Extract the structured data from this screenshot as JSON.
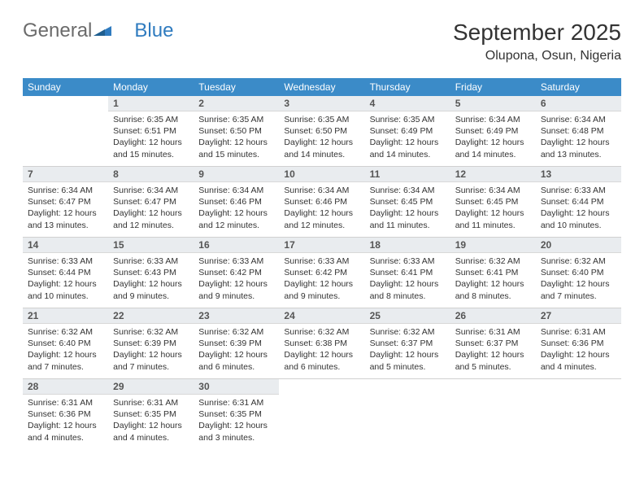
{
  "logo": {
    "general": "General",
    "blue": "Blue"
  },
  "title": "September 2025",
  "location": "Olupona, Osun, Nigeria",
  "colors": {
    "header_bg": "#3b8bc8",
    "header_text": "#ffffff",
    "daynum_bg": "#e9ecef",
    "text": "#333333",
    "logo_gray": "#6b6b6b",
    "logo_blue": "#2f7bbf",
    "border": "#d0d0d0"
  },
  "weekdays": [
    "Sunday",
    "Monday",
    "Tuesday",
    "Wednesday",
    "Thursday",
    "Friday",
    "Saturday"
  ],
  "weeks": [
    [
      {
        "day": "",
        "sunrise": "",
        "sunset": "",
        "daylight": ""
      },
      {
        "day": "1",
        "sunrise": "Sunrise: 6:35 AM",
        "sunset": "Sunset: 6:51 PM",
        "daylight": "Daylight: 12 hours and 15 minutes."
      },
      {
        "day": "2",
        "sunrise": "Sunrise: 6:35 AM",
        "sunset": "Sunset: 6:50 PM",
        "daylight": "Daylight: 12 hours and 15 minutes."
      },
      {
        "day": "3",
        "sunrise": "Sunrise: 6:35 AM",
        "sunset": "Sunset: 6:50 PM",
        "daylight": "Daylight: 12 hours and 14 minutes."
      },
      {
        "day": "4",
        "sunrise": "Sunrise: 6:35 AM",
        "sunset": "Sunset: 6:49 PM",
        "daylight": "Daylight: 12 hours and 14 minutes."
      },
      {
        "day": "5",
        "sunrise": "Sunrise: 6:34 AM",
        "sunset": "Sunset: 6:49 PM",
        "daylight": "Daylight: 12 hours and 14 minutes."
      },
      {
        "day": "6",
        "sunrise": "Sunrise: 6:34 AM",
        "sunset": "Sunset: 6:48 PM",
        "daylight": "Daylight: 12 hours and 13 minutes."
      }
    ],
    [
      {
        "day": "7",
        "sunrise": "Sunrise: 6:34 AM",
        "sunset": "Sunset: 6:47 PM",
        "daylight": "Daylight: 12 hours and 13 minutes."
      },
      {
        "day": "8",
        "sunrise": "Sunrise: 6:34 AM",
        "sunset": "Sunset: 6:47 PM",
        "daylight": "Daylight: 12 hours and 12 minutes."
      },
      {
        "day": "9",
        "sunrise": "Sunrise: 6:34 AM",
        "sunset": "Sunset: 6:46 PM",
        "daylight": "Daylight: 12 hours and 12 minutes."
      },
      {
        "day": "10",
        "sunrise": "Sunrise: 6:34 AM",
        "sunset": "Sunset: 6:46 PM",
        "daylight": "Daylight: 12 hours and 12 minutes."
      },
      {
        "day": "11",
        "sunrise": "Sunrise: 6:34 AM",
        "sunset": "Sunset: 6:45 PM",
        "daylight": "Daylight: 12 hours and 11 minutes."
      },
      {
        "day": "12",
        "sunrise": "Sunrise: 6:34 AM",
        "sunset": "Sunset: 6:45 PM",
        "daylight": "Daylight: 12 hours and 11 minutes."
      },
      {
        "day": "13",
        "sunrise": "Sunrise: 6:33 AM",
        "sunset": "Sunset: 6:44 PM",
        "daylight": "Daylight: 12 hours and 10 minutes."
      }
    ],
    [
      {
        "day": "14",
        "sunrise": "Sunrise: 6:33 AM",
        "sunset": "Sunset: 6:44 PM",
        "daylight": "Daylight: 12 hours and 10 minutes."
      },
      {
        "day": "15",
        "sunrise": "Sunrise: 6:33 AM",
        "sunset": "Sunset: 6:43 PM",
        "daylight": "Daylight: 12 hours and 9 minutes."
      },
      {
        "day": "16",
        "sunrise": "Sunrise: 6:33 AM",
        "sunset": "Sunset: 6:42 PM",
        "daylight": "Daylight: 12 hours and 9 minutes."
      },
      {
        "day": "17",
        "sunrise": "Sunrise: 6:33 AM",
        "sunset": "Sunset: 6:42 PM",
        "daylight": "Daylight: 12 hours and 9 minutes."
      },
      {
        "day": "18",
        "sunrise": "Sunrise: 6:33 AM",
        "sunset": "Sunset: 6:41 PM",
        "daylight": "Daylight: 12 hours and 8 minutes."
      },
      {
        "day": "19",
        "sunrise": "Sunrise: 6:32 AM",
        "sunset": "Sunset: 6:41 PM",
        "daylight": "Daylight: 12 hours and 8 minutes."
      },
      {
        "day": "20",
        "sunrise": "Sunrise: 6:32 AM",
        "sunset": "Sunset: 6:40 PM",
        "daylight": "Daylight: 12 hours and 7 minutes."
      }
    ],
    [
      {
        "day": "21",
        "sunrise": "Sunrise: 6:32 AM",
        "sunset": "Sunset: 6:40 PM",
        "daylight": "Daylight: 12 hours and 7 minutes."
      },
      {
        "day": "22",
        "sunrise": "Sunrise: 6:32 AM",
        "sunset": "Sunset: 6:39 PM",
        "daylight": "Daylight: 12 hours and 7 minutes."
      },
      {
        "day": "23",
        "sunrise": "Sunrise: 6:32 AM",
        "sunset": "Sunset: 6:39 PM",
        "daylight": "Daylight: 12 hours and 6 minutes."
      },
      {
        "day": "24",
        "sunrise": "Sunrise: 6:32 AM",
        "sunset": "Sunset: 6:38 PM",
        "daylight": "Daylight: 12 hours and 6 minutes."
      },
      {
        "day": "25",
        "sunrise": "Sunrise: 6:32 AM",
        "sunset": "Sunset: 6:37 PM",
        "daylight": "Daylight: 12 hours and 5 minutes."
      },
      {
        "day": "26",
        "sunrise": "Sunrise: 6:31 AM",
        "sunset": "Sunset: 6:37 PM",
        "daylight": "Daylight: 12 hours and 5 minutes."
      },
      {
        "day": "27",
        "sunrise": "Sunrise: 6:31 AM",
        "sunset": "Sunset: 6:36 PM",
        "daylight": "Daylight: 12 hours and 4 minutes."
      }
    ],
    [
      {
        "day": "28",
        "sunrise": "Sunrise: 6:31 AM",
        "sunset": "Sunset: 6:36 PM",
        "daylight": "Daylight: 12 hours and 4 minutes."
      },
      {
        "day": "29",
        "sunrise": "Sunrise: 6:31 AM",
        "sunset": "Sunset: 6:35 PM",
        "daylight": "Daylight: 12 hours and 4 minutes."
      },
      {
        "day": "30",
        "sunrise": "Sunrise: 6:31 AM",
        "sunset": "Sunset: 6:35 PM",
        "daylight": "Daylight: 12 hours and 3 minutes."
      },
      {
        "day": "",
        "sunrise": "",
        "sunset": "",
        "daylight": ""
      },
      {
        "day": "",
        "sunrise": "",
        "sunset": "",
        "daylight": ""
      },
      {
        "day": "",
        "sunrise": "",
        "sunset": "",
        "daylight": ""
      },
      {
        "day": "",
        "sunrise": "",
        "sunset": "",
        "daylight": ""
      }
    ]
  ]
}
